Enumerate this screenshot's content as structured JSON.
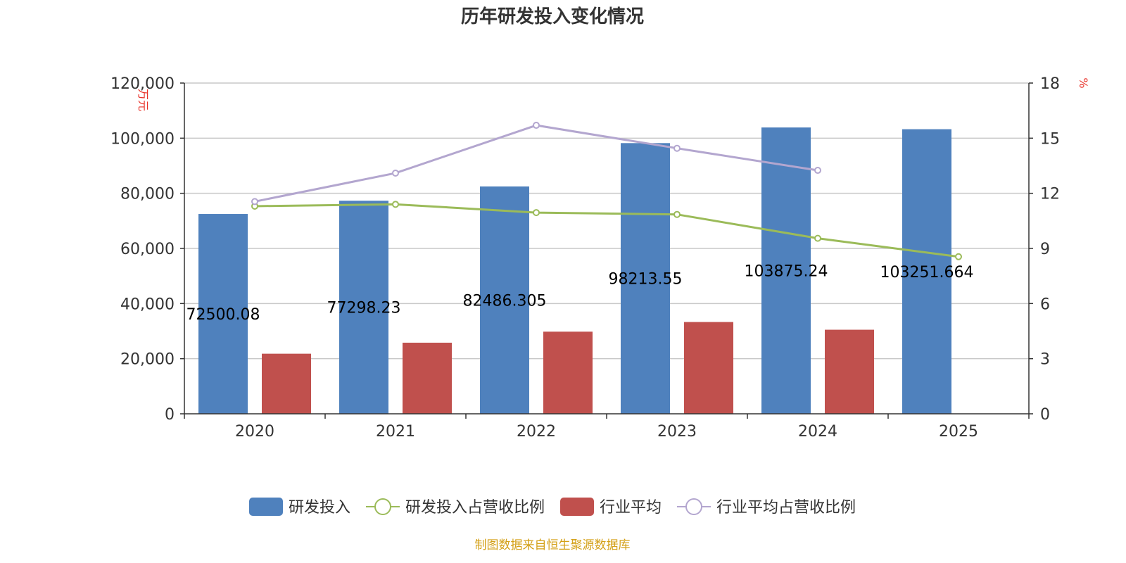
{
  "chart_data": {
    "type": "bar",
    "title": "历年研发投入变化情况",
    "categories": [
      "2020",
      "2021",
      "2022",
      "2023",
      "2024",
      "2025"
    ],
    "y_left": {
      "unit": "万元",
      "ylim": [
        0,
        120000
      ],
      "ticks": [
        "0",
        "20,000",
        "40,000",
        "60,000",
        "80,000",
        "100,000",
        "120,000"
      ],
      "tick_values": [
        0,
        20000,
        40000,
        60000,
        80000,
        100000,
        120000
      ]
    },
    "y_right": {
      "unit": "%",
      "ylim": [
        0,
        18
      ],
      "ticks": [
        "0",
        "3",
        "6",
        "9",
        "12",
        "15",
        "18"
      ],
      "tick_values": [
        0,
        3,
        6,
        9,
        12,
        15,
        18
      ]
    },
    "series": [
      {
        "name": "研发投入",
        "kind": "bar",
        "axis": "left",
        "color": "#4f81bd",
        "values": [
          72500.08,
          77298.23,
          82486.305,
          98213.55,
          103875.24,
          103251.664
        ],
        "labels": [
          "72500.08",
          "77298.23",
          "82486.305",
          "98213.55",
          "103875.24",
          "103251.664"
        ]
      },
      {
        "name": "研发投入占营收比例",
        "kind": "line",
        "axis": "right",
        "color": "#9bbb59",
        "values": [
          11.3,
          11.4,
          10.95,
          10.85,
          9.55,
          8.55
        ]
      },
      {
        "name": "行业平均",
        "kind": "bar",
        "axis": "left",
        "color": "#c0504d",
        "values": [
          21800,
          25800,
          29800,
          33300,
          30500,
          null
        ]
      },
      {
        "name": "行业平均占营收比例",
        "kind": "line",
        "axis": "right",
        "color": "#b3a6cf",
        "values": [
          11.55,
          13.1,
          15.7,
          14.45,
          13.25,
          null
        ]
      }
    ],
    "grid": true,
    "legend_position": "bottom"
  },
  "source": "制图数据来自恒生聚源数据库"
}
